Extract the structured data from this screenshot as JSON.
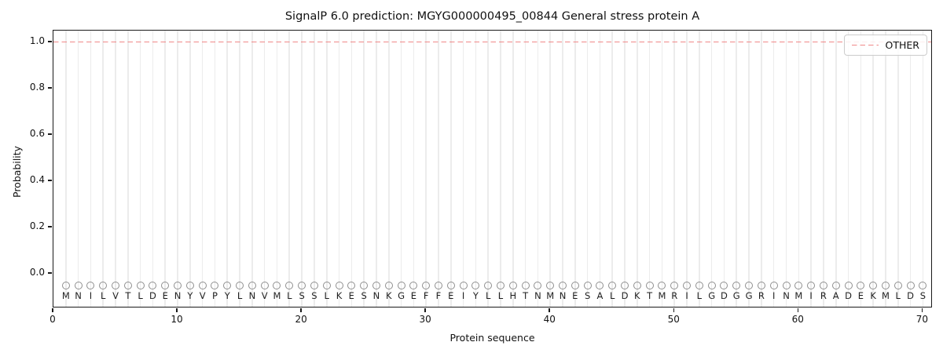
{
  "title": "SignalP 6.0 prediction: MGYG000000495_00844 General stress protein A",
  "axes": {
    "x_label": "Protein sequence",
    "y_label": "Probability",
    "x_tick_labels": [
      "0",
      "10",
      "20",
      "30",
      "40",
      "50",
      "60",
      "70"
    ],
    "y_tick_labels": [
      "0.0",
      "0.2",
      "0.4",
      "0.6",
      "0.8",
      "1.0"
    ]
  },
  "legend": {
    "position": "upper right",
    "entries": [
      {
        "label": "OTHER",
        "color": "#f08888",
        "line_style": "dashed"
      }
    ]
  },
  "sequence": "MNILVTLDENYVPYLNVMLSSLKESNKGEFFEIYLLHTNMNESALDKTMRILGDGGRINMIRADEKMLDS",
  "chart_data": {
    "type": "line",
    "title": "SignalP 6.0 prediction: MGYG000000495_00844 General stress protein A",
    "xlabel": "Protein sequence",
    "ylabel": "Probability",
    "xlim": [
      0,
      70.8
    ],
    "ylim": [
      -0.15,
      1.05
    ],
    "x_ticks": [
      0,
      10,
      20,
      30,
      40,
      50,
      60,
      70
    ],
    "y_ticks": [
      0.0,
      0.2,
      0.4,
      0.6,
      0.8,
      1.0
    ],
    "grid": {
      "vertical_per_residue": true,
      "horizontal": false,
      "color": "#ececec"
    },
    "legend_position": "upper right",
    "series": [
      {
        "name": "OTHER",
        "style": "dashed",
        "color": "#f08888",
        "constant_y": 1.0,
        "x_start": 0,
        "x_end": 70.8
      }
    ],
    "sequence_markers": {
      "marker": "o",
      "marker_edge_color": "#8f8f8f",
      "marker_y": -0.05,
      "first_position": 1,
      "last_position": 70,
      "residues": "MNILVTLDENYVPYLNVMLSSLKESNKGEFFEIYLLHTNMNESALDKTMRILGDGGRINMIRADEKMLDS"
    }
  },
  "colors": {
    "background": "#ffffff",
    "other_line": "#f08888",
    "grid": "#ececec",
    "marker_edge": "#8f8f8f",
    "text": "#111111"
  }
}
